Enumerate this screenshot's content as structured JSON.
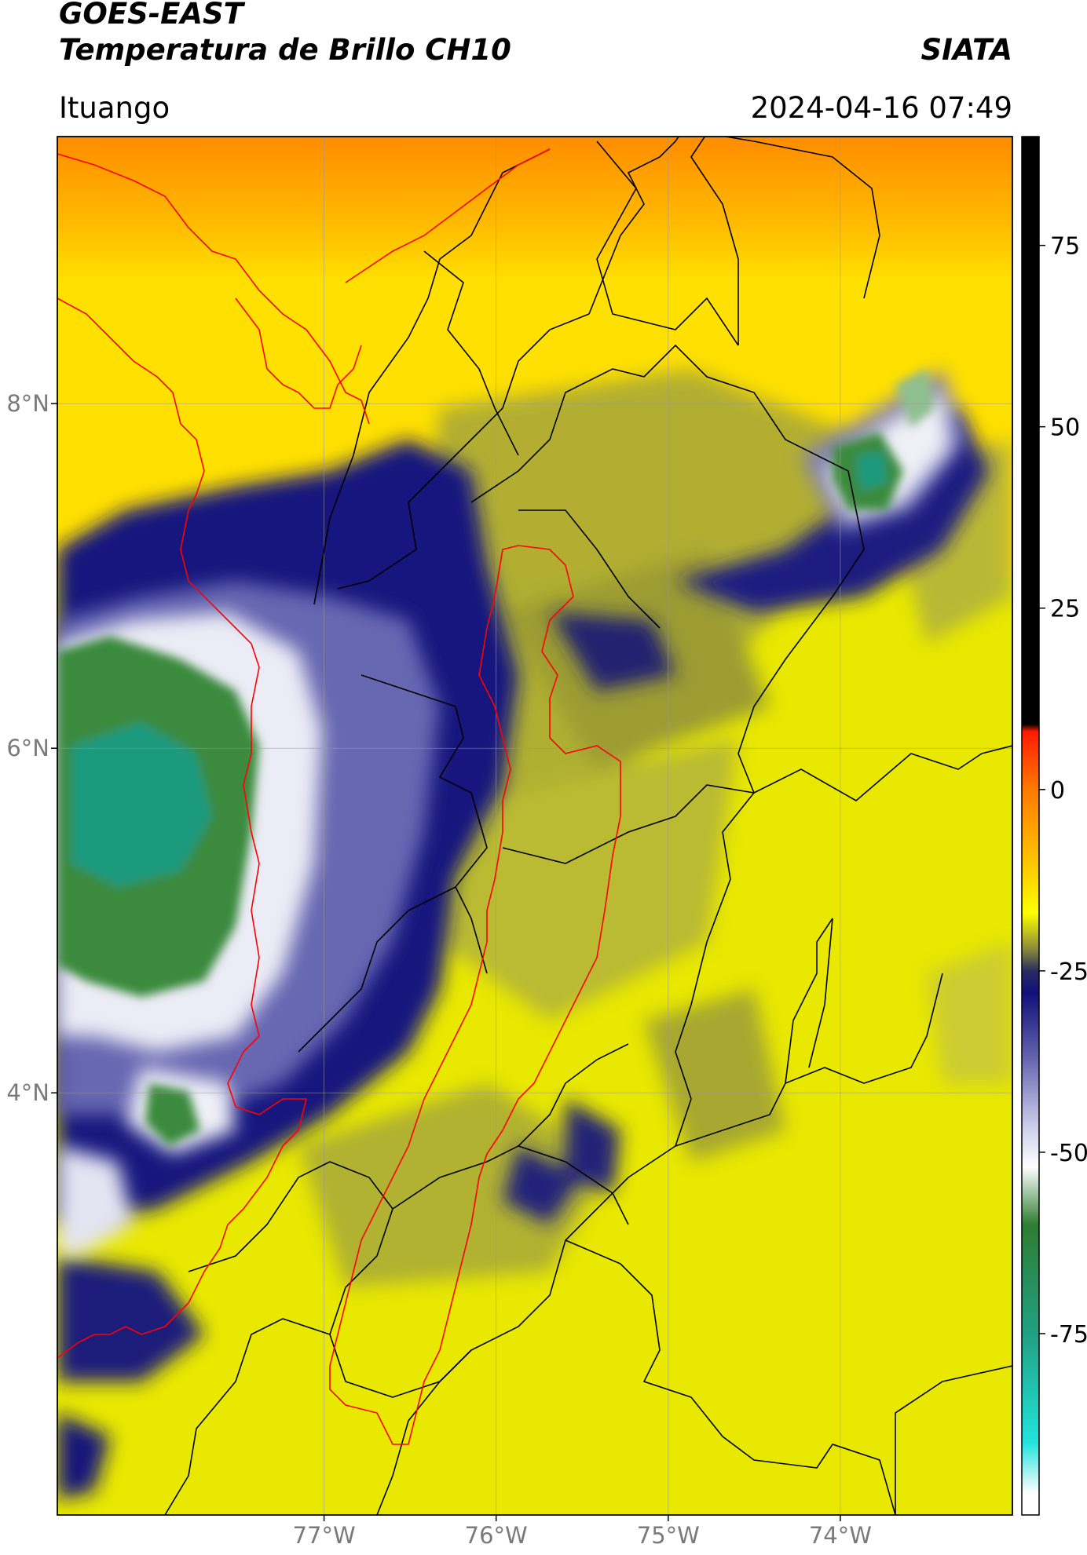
{
  "header": {
    "source": "GOES-EAST",
    "product": "Temperatura de Brillo CH10",
    "org": "SIATA",
    "location": "Ituango",
    "datetime": "2024-04-16 07:49"
  },
  "map": {
    "lat_ticks": [
      {
        "value": 8,
        "label": "8°N"
      },
      {
        "value": 6,
        "label": "6°N"
      },
      {
        "value": 4,
        "label": "4°N"
      }
    ],
    "lon_ticks": [
      {
        "value": -77,
        "label": "77°W"
      },
      {
        "value": -76,
        "label": "76°W"
      },
      {
        "value": -75,
        "label": "75°W"
      },
      {
        "value": -74,
        "label": "74°W"
      }
    ],
    "extent": {
      "lon_min": -78.55,
      "lon_max": -73.0,
      "lat_min": 1.55,
      "lat_max": 9.55
    },
    "colors": {
      "border_black": "#000000",
      "outline_red": "#ff0000",
      "grid": "#999999"
    }
  },
  "colorbar": {
    "ticks": [
      {
        "value": 75,
        "label": "75"
      },
      {
        "value": 50,
        "label": "50"
      },
      {
        "value": 25,
        "label": "25"
      },
      {
        "value": 0,
        "label": "0"
      },
      {
        "value": -25,
        "label": "-25"
      },
      {
        "value": -50,
        "label": "-50"
      },
      {
        "value": -75,
        "label": "-75"
      }
    ],
    "range": [
      -100,
      90
    ],
    "stops": [
      {
        "value": 90,
        "color": "#000000"
      },
      {
        "value": 9,
        "color": "#000000"
      },
      {
        "value": 8,
        "color": "#ff1a00"
      },
      {
        "value": 0,
        "color": "#ff7a00"
      },
      {
        "value": -10,
        "color": "#ffc400"
      },
      {
        "value": -17,
        "color": "#ffff00"
      },
      {
        "value": -22,
        "color": "#8a8a3a"
      },
      {
        "value": -25,
        "color": "#2a2a60"
      },
      {
        "value": -28,
        "color": "#10107a"
      },
      {
        "value": -36,
        "color": "#5a5aa8"
      },
      {
        "value": -46,
        "color": "#c8c8e8"
      },
      {
        "value": -52,
        "color": "#ffffff"
      },
      {
        "value": -60,
        "color": "#2e7d32"
      },
      {
        "value": -75,
        "color": "#21a183"
      },
      {
        "value": -90,
        "color": "#22e3dc"
      },
      {
        "value": -97,
        "color": "#ffffff"
      },
      {
        "value": -100,
        "color": "#ffffff"
      }
    ]
  }
}
